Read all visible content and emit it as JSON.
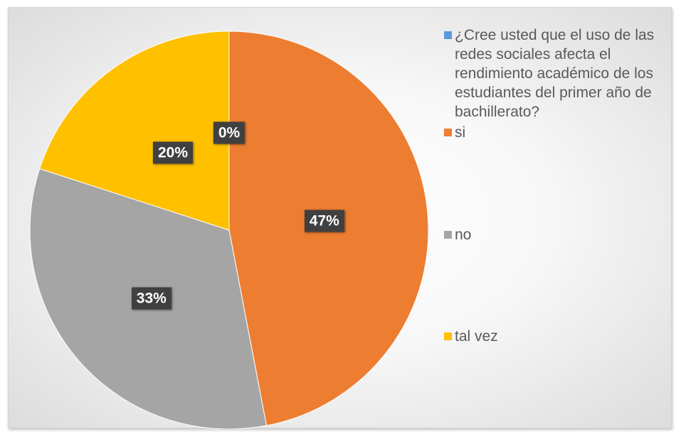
{
  "chart_data": {
    "type": "pie",
    "title": "",
    "categories": [
      "¿Cree usted que el uso de las redes sociales afecta el rendimiento académico de los estudiantes del primer año de bachillerato?",
      "si",
      "no",
      "tal vez"
    ],
    "values": [
      0,
      47,
      33,
      20
    ],
    "data_labels": [
      "0%",
      "47%",
      "33%",
      "20%"
    ],
    "colors": [
      "#5b9bd5",
      "#ed7d31",
      "#a5a5a5",
      "#ffc000"
    ],
    "legend_position": "right",
    "start_angle": "top, clockwise"
  }
}
